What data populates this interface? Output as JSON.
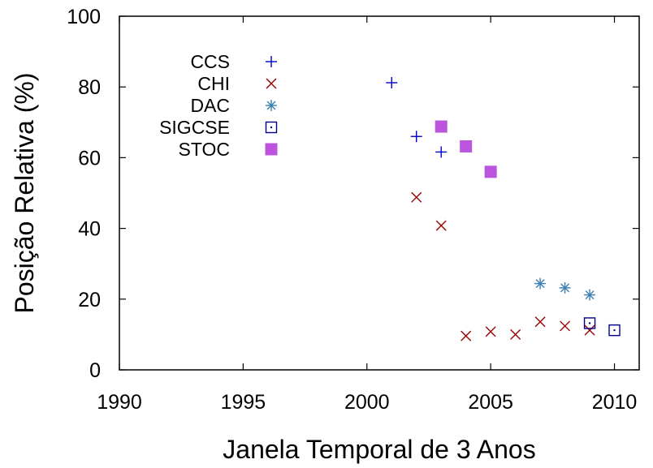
{
  "chart_data": {
    "type": "scatter",
    "xlabel": "Janela Temporal de 3 Anos",
    "ylabel": "Posição Relativa (%)",
    "xlim": [
      1990,
      2011
    ],
    "ylim": [
      0,
      100
    ],
    "x_ticks": [
      1990,
      1995,
      2000,
      2005,
      2010
    ],
    "y_ticks": [
      0,
      20,
      40,
      60,
      80,
      100
    ],
    "grid": false,
    "legend_position": "top-left",
    "series": [
      {
        "name": "CCS",
        "marker": "plus",
        "color": "#0000cc",
        "x": [
          2001,
          2002,
          2003
        ],
        "y": [
          81.2,
          66,
          61.6
        ]
      },
      {
        "name": "CHI",
        "marker": "cross",
        "color": "#990000",
        "x": [
          2002,
          2003,
          2004,
          2005,
          2006,
          2007,
          2008,
          2009
        ],
        "y": [
          48.8,
          40.8,
          9.6,
          10.8,
          10,
          13.6,
          12.4,
          11.2
        ]
      },
      {
        "name": "DAC",
        "marker": "asterisk",
        "color": "#3c7fb1",
        "x": [
          2007,
          2008,
          2009
        ],
        "y": [
          24.4,
          23.2,
          21.2
        ]
      },
      {
        "name": "SIGCSE",
        "marker": "dotted-square",
        "color": "#00008b",
        "x": [
          2009,
          2010
        ],
        "y": [
          13.2,
          11.2
        ]
      },
      {
        "name": "STOC",
        "marker": "filled-square",
        "color": "#bb55dd",
        "x": [
          2003,
          2004,
          2005
        ],
        "y": [
          68.8,
          63.2,
          56
        ]
      }
    ]
  }
}
